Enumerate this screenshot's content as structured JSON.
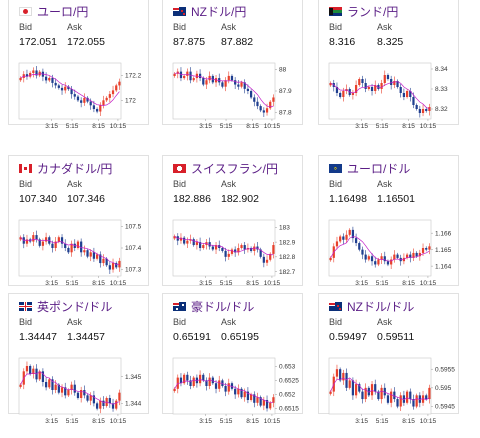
{
  "colors": {
    "up": "#e8402c",
    "down": "#1f3e8f",
    "ma": "#c21dc9",
    "title": "#5b1e86"
  },
  "cards": [
    {
      "flag": "jp",
      "pair": "ユーロ/円",
      "bid_label": "Bid",
      "ask_label": "Ask",
      "bid": "172.051",
      "ask": "172.055",
      "chart_data": {
        "type": "candlestick",
        "x_ticks": [
          "3:15",
          "5:15",
          "8:15",
          "10:15"
        ],
        "y_ticks": [
          {
            "label": "172.2",
            "v": 172.2
          },
          {
            "label": "172",
            "v": 172.0
          }
        ],
        "ylim": [
          171.85,
          172.3
        ],
        "closes": [
          172.18,
          172.21,
          172.19,
          172.22,
          172.24,
          172.2,
          172.23,
          172.19,
          172.16,
          172.18,
          172.14,
          172.12,
          172.1,
          172.08,
          172.11,
          172.09,
          172.05,
          172.03,
          172.0,
          171.98,
          172.02,
          171.99,
          171.96,
          171.93,
          171.91,
          171.96,
          172.0,
          172.02,
          172.05,
          172.08,
          172.12,
          172.15
        ]
      }
    },
    {
      "flag": "nz",
      "pair": "NZドル/円",
      "bid_label": "Bid",
      "ask_label": "Ask",
      "bid": "87.875",
      "ask": "87.882",
      "chart_data": {
        "type": "candlestick",
        "x_ticks": [
          "3:15",
          "5:15",
          "8:15",
          "10:15"
        ],
        "y_ticks": [
          {
            "label": "88",
            "v": 88.0
          },
          {
            "label": "87.9",
            "v": 87.9
          },
          {
            "label": "87.8",
            "v": 87.8
          }
        ],
        "ylim": [
          87.77,
          88.03
        ],
        "closes": [
          87.98,
          87.99,
          87.96,
          87.97,
          87.99,
          87.95,
          87.96,
          87.98,
          87.96,
          87.93,
          87.95,
          87.97,
          87.94,
          87.96,
          87.94,
          87.92,
          87.95,
          87.97,
          87.95,
          87.93,
          87.92,
          87.94,
          87.91,
          87.9,
          87.87,
          87.85,
          87.83,
          87.81,
          87.8,
          87.82,
          87.85,
          87.87
        ]
      }
    },
    {
      "flag": "za",
      "pair": "ランド/円",
      "bid_label": "Bid",
      "ask_label": "Ask",
      "bid": "8.316",
      "ask": "8.325",
      "chart_data": {
        "type": "candlestick",
        "x_ticks": [
          "3:15",
          "5:15",
          "8:15",
          "10:15"
        ],
        "y_ticks": [
          {
            "label": "8.34",
            "v": 8.34
          },
          {
            "label": "8.33",
            "v": 8.33
          },
          {
            "label": "8.32",
            "v": 8.32
          }
        ],
        "ylim": [
          8.315,
          8.343
        ],
        "closes": [
          8.333,
          8.331,
          8.328,
          8.326,
          8.329,
          8.33,
          8.327,
          8.328,
          8.332,
          8.335,
          8.333,
          8.33,
          8.331,
          8.329,
          8.332,
          8.33,
          8.333,
          8.337,
          8.335,
          8.332,
          8.334,
          8.331,
          8.328,
          8.326,
          8.329,
          8.326,
          8.322,
          8.32,
          8.318,
          8.32,
          8.319,
          8.321
        ]
      }
    },
    {
      "flag": "ca",
      "pair": "カナダドル/円",
      "bid_label": "Bid",
      "ask_label": "Ask",
      "bid": "107.340",
      "ask": "107.346",
      "chart_data": {
        "type": "candlestick",
        "x_ticks": [
          "3:15",
          "5:15",
          "8:15",
          "10:15"
        ],
        "y_ticks": [
          {
            "label": "107.5",
            "v": 107.5
          },
          {
            "label": "107.4",
            "v": 107.4
          },
          {
            "label": "107.3",
            "v": 107.3
          }
        ],
        "ylim": [
          107.27,
          107.53
        ],
        "closes": [
          107.45,
          107.42,
          107.44,
          107.43,
          107.46,
          107.44,
          107.41,
          107.43,
          107.45,
          107.42,
          107.4,
          107.43,
          107.45,
          107.42,
          107.4,
          107.38,
          107.42,
          107.4,
          107.43,
          107.38,
          107.39,
          107.36,
          107.38,
          107.35,
          107.37,
          107.33,
          107.35,
          107.32,
          107.3,
          107.33,
          107.31,
          107.34
        ]
      }
    },
    {
      "flag": "ch",
      "pair": "スイスフラン/円",
      "bid_label": "Bid",
      "ask_label": "Ask",
      "bid": "182.886",
      "ask": "182.902",
      "chart_data": {
        "type": "candlestick",
        "x_ticks": [
          "3:15",
          "5:15",
          "8:15",
          "10:15"
        ],
        "y_ticks": [
          {
            "label": "183",
            "v": 183.0
          },
          {
            "label": "182.9",
            "v": 182.9
          },
          {
            "label": "182.8",
            "v": 182.8
          },
          {
            "label": "182.7",
            "v": 182.7
          }
        ],
        "ylim": [
          182.67,
          183.05
        ],
        "closes": [
          182.94,
          182.91,
          182.93,
          182.89,
          182.91,
          182.92,
          182.88,
          182.9,
          182.86,
          182.88,
          182.9,
          182.87,
          182.85,
          182.88,
          182.86,
          182.84,
          182.8,
          182.82,
          182.85,
          182.83,
          182.86,
          182.88,
          182.85,
          182.86,
          182.84,
          182.87,
          182.85,
          182.8,
          182.76,
          182.78,
          182.82,
          182.88
        ]
      }
    },
    {
      "flag": "eu",
      "pair": "ユーロ/ドル",
      "bid_label": "Bid",
      "ask_label": "Ask",
      "bid": "1.16498",
      "ask": "1.16501",
      "chart_data": {
        "type": "candlestick",
        "x_ticks": [
          "3:15",
          "5:15",
          "8:15",
          "10:15"
        ],
        "y_ticks": [
          {
            "label": "1.166",
            "v": 1.166
          },
          {
            "label": "1.165",
            "v": 1.165
          },
          {
            "label": "1.164",
            "v": 1.164
          }
        ],
        "ylim": [
          1.1634,
          1.1668
        ],
        "closes": [
          1.1645,
          1.1652,
          1.1655,
          1.1658,
          1.1656,
          1.1659,
          1.1662,
          1.1657,
          1.1654,
          1.165,
          1.1647,
          1.1644,
          1.1646,
          1.1643,
          1.1641,
          1.1644,
          1.1646,
          1.1643,
          1.1641,
          1.1644,
          1.1647,
          1.1645,
          1.1643,
          1.1645,
          1.1647,
          1.1645,
          1.1648,
          1.1646,
          1.1648,
          1.1651,
          1.165,
          1.1652
        ]
      }
    },
    {
      "flag": "gb",
      "pair": "英ポンド/ドル",
      "bid_label": "Bid",
      "ask_label": "Ask",
      "bid": "1.34447",
      "ask": "1.34457",
      "chart_data": {
        "type": "candlestick",
        "x_ticks": [
          "3:15",
          "5:15",
          "8:15",
          "10:15"
        ],
        "y_ticks": [
          {
            "label": "1.345",
            "v": 1.345
          },
          {
            "label": "1.344",
            "v": 1.344
          }
        ],
        "ylim": [
          1.3436,
          1.3457
        ],
        "closes": [
          1.3447,
          1.3452,
          1.3454,
          1.3451,
          1.3453,
          1.3449,
          1.3452,
          1.3448,
          1.3446,
          1.3449,
          1.3445,
          1.3447,
          1.3444,
          1.3446,
          1.3443,
          1.3445,
          1.3447,
          1.3444,
          1.3442,
          1.3445,
          1.3443,
          1.3441,
          1.3443,
          1.344,
          1.3438,
          1.3441,
          1.3439,
          1.3442,
          1.344,
          1.3438,
          1.3441,
          1.3444
        ]
      }
    },
    {
      "flag": "au",
      "pair": "豪ドル/ドル",
      "bid_label": "Bid",
      "ask_label": "Ask",
      "bid": "0.65191",
      "ask": "0.65195",
      "chart_data": {
        "type": "candlestick",
        "x_ticks": [
          "3:15",
          "5:15",
          "8:15",
          "10:15"
        ],
        "y_ticks": [
          {
            "label": "0.653",
            "v": 0.653
          },
          {
            "label": "0.6525",
            "v": 0.6525
          },
          {
            "label": "0.652",
            "v": 0.652
          },
          {
            "label": "0.6515",
            "v": 0.6515
          }
        ],
        "ylim": [
          0.6513,
          0.6533
        ],
        "closes": [
          0.6522,
          0.6526,
          0.6524,
          0.6527,
          0.6525,
          0.6523,
          0.6526,
          0.6524,
          0.6527,
          0.6525,
          0.6523,
          0.6526,
          0.6524,
          0.6522,
          0.6525,
          0.6523,
          0.6521,
          0.6524,
          0.6522,
          0.652,
          0.6522,
          0.6519,
          0.6521,
          0.6518,
          0.652,
          0.6517,
          0.6519,
          0.6516,
          0.6518,
          0.6515,
          0.6517,
          0.6519
        ]
      }
    },
    {
      "flag": "nz",
      "pair": "NZドル/ドル",
      "bid_label": "Bid",
      "ask_label": "Ask",
      "bid": "0.59497",
      "ask": "0.59511",
      "chart_data": {
        "type": "candlestick",
        "x_ticks": [
          "3:15",
          "5:15",
          "8:15",
          "10:15"
        ],
        "y_ticks": [
          {
            "label": "0.5955",
            "v": 0.5955
          },
          {
            "label": "0.595",
            "v": 0.595
          },
          {
            "label": "0.5945",
            "v": 0.5945
          }
        ],
        "ylim": [
          0.5943,
          0.5958
        ],
        "closes": [
          0.5949,
          0.5953,
          0.5955,
          0.5952,
          0.5954,
          0.595,
          0.5952,
          0.5948,
          0.5951,
          0.5949,
          0.5947,
          0.595,
          0.5948,
          0.5951,
          0.5949,
          0.5947,
          0.595,
          0.5948,
          0.5946,
          0.5949,
          0.5947,
          0.5945,
          0.5948,
          0.5946,
          0.5949,
          0.5947,
          0.5945,
          0.5948,
          0.5946,
          0.5948,
          0.5947,
          0.595
        ]
      }
    }
  ]
}
